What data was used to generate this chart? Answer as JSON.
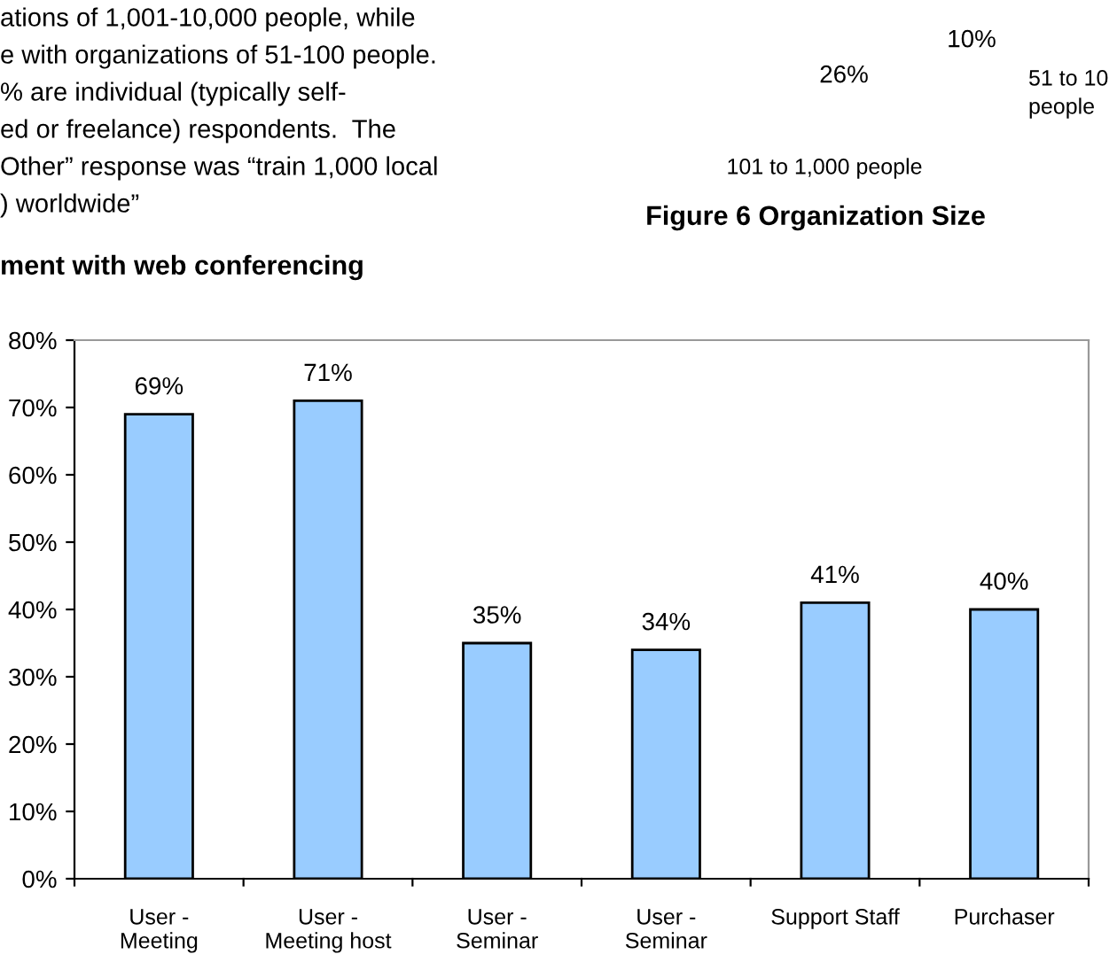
{
  "chart_data": [
    {
      "type": "other",
      "title": "Figure 6 Organization Size",
      "subtitle": "ment with web conferencing",
      "annotations": [
        "ations of 1,001-10,000 people, while",
        "e with organizations of 51-100 people.",
        "% are individual (typically self-",
        "ed or freelance) respondents.  The",
        "Other” response was “train 1,000 local",
        ") worldwide”",
        "26%",
        "10%",
        "51 to 10",
        "people",
        "101 to 1,000 people"
      ]
    },
    {
      "type": "bar",
      "categories": [
        "User -\nMeeting",
        "User -\nMeeting host",
        "User -\nSeminar",
        "User -\nSeminar",
        "Support Staff",
        "Purchaser"
      ],
      "values": [
        69,
        71,
        35,
        34,
        41,
        40
      ],
      "value_labels": [
        "69%",
        "71%",
        "35%",
        "34%",
        "41%",
        "40%"
      ],
      "color": "#99ccff",
      "ylim": [
        0,
        80
      ],
      "yticks": [
        {
          "value": 0,
          "label": "0%"
        },
        {
          "value": 10,
          "label": "10%"
        },
        {
          "value": 20,
          "label": "20%"
        },
        {
          "value": 30,
          "label": "30%"
        },
        {
          "value": 40,
          "label": "40%"
        },
        {
          "value": 50,
          "label": "50%"
        },
        {
          "value": 60,
          "label": "60%"
        },
        {
          "value": 70,
          "label": "70%"
        },
        {
          "value": 80,
          "label": "80%"
        }
      ],
      "grid": false
    }
  ]
}
